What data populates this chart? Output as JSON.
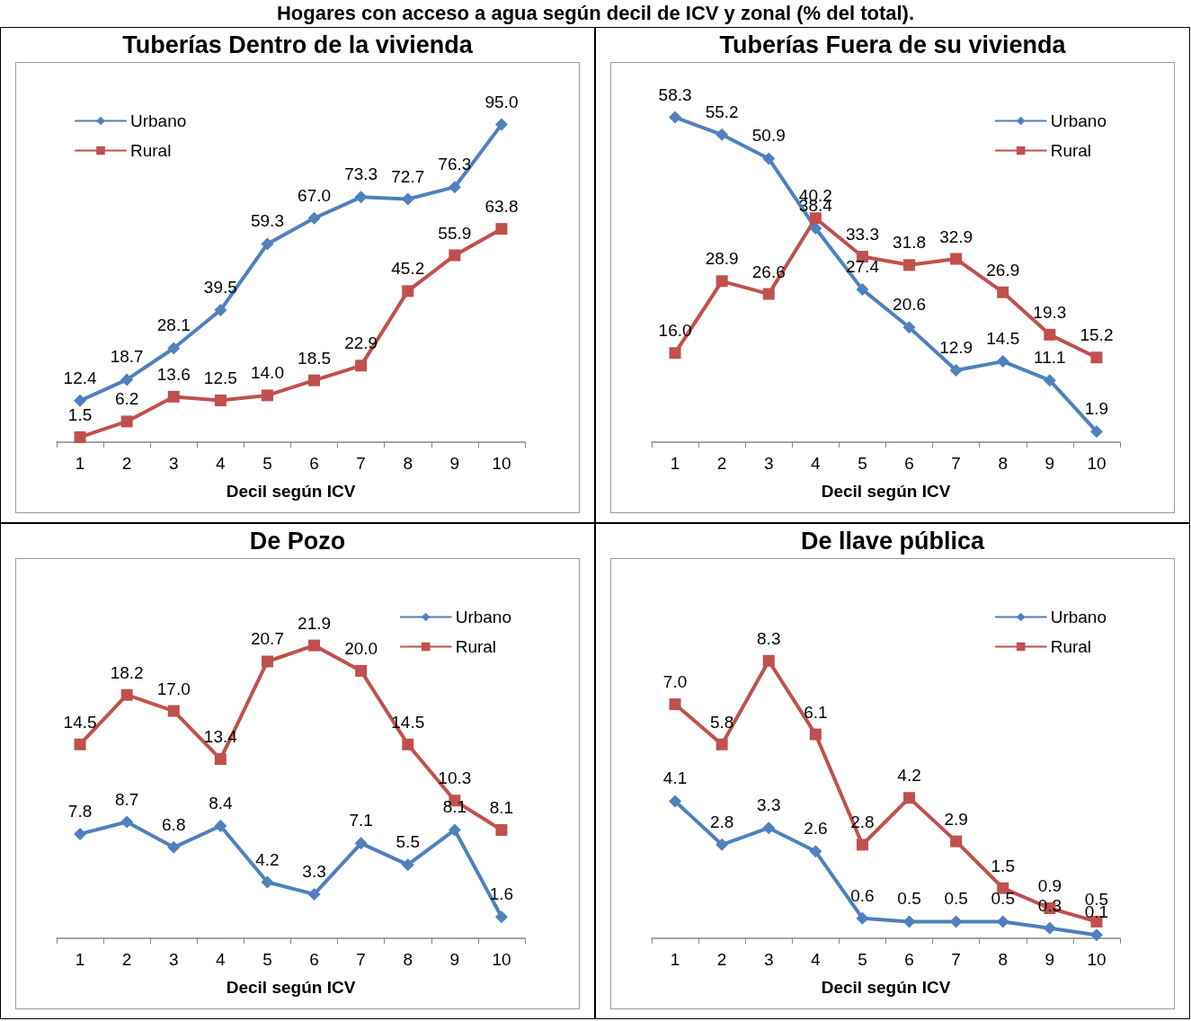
{
  "chart_data": [
    {
      "type": "line",
      "title": "Tuberías Dentro de la vivienda",
      "annotations": [
        "Hogares con acceso a agua según decil de ICV y zonal (% del total)."
      ],
      "xlabel": "Decil según ICV",
      "categories": [
        "1",
        "2",
        "3",
        "4",
        "5",
        "6",
        "7",
        "8",
        "9",
        "10"
      ],
      "grid": false,
      "legend": "top left",
      "line_style": "solid",
      "series": [
        {
          "name": "Urbano",
          "color": "#4f81bd",
          "marker": "diamond",
          "values": [
            12.4,
            18.7,
            28.1,
            39.5,
            59.3,
            67,
            73.3,
            72.7,
            76.3,
            95
          ],
          "value_labels": [
            "12.4",
            "18.7",
            "28.1",
            "39.5",
            "59.3",
            "67.0",
            "73.3",
            "72.7",
            "76.3",
            "95.0"
          ]
        },
        {
          "name": "Rural",
          "color": "#c0504d",
          "marker": "square",
          "values": [
            1.5,
            6.2,
            13.6,
            12.5,
            14,
            18.5,
            22.9,
            45.2,
            55.9,
            63.8
          ],
          "value_labels": [
            "1.5",
            "6.2",
            "13.6",
            "12.5",
            "14.0",
            "18.5",
            "22.9",
            "45.2",
            "55.9",
            "63.8"
          ]
        }
      ]
    },
    {
      "type": "line",
      "title": "Tuberías Fuera de su vivienda",
      "xlabel": "Decil según ICV",
      "categories": [
        "1",
        "2",
        "3",
        "4",
        "5",
        "6",
        "7",
        "8",
        "9",
        "10"
      ],
      "grid": false,
      "legend": "top right",
      "line_style": "solid",
      "series": [
        {
          "name": "Urbano",
          "color": "#4f81bd",
          "marker": "diamond",
          "values": [
            58.3,
            55.2,
            50.9,
            38.4,
            27.4,
            20.6,
            12.9,
            14.5,
            11.1,
            1.9
          ],
          "value_labels": [
            "58.3",
            "55.2",
            "50.9",
            "38.4",
            "27.4",
            "20.6",
            "12.9",
            "14.5",
            "11.1",
            "1.9"
          ]
        },
        {
          "name": "Rural",
          "color": "#c0504d",
          "marker": "square",
          "values": [
            16,
            28.9,
            26.6,
            40.2,
            33.3,
            31.8,
            32.9,
            26.9,
            19.3,
            15.2
          ],
          "value_labels": [
            "16.0",
            "28.9",
            "26.6",
            "40.2",
            "33.3",
            "31.8",
            "32.9",
            "26.9",
            "19.3",
            "15.2"
          ]
        }
      ]
    },
    {
      "type": "line",
      "title": "De Pozo",
      "xlabel": "Decil según ICV",
      "categories": [
        "1",
        "2",
        "3",
        "4",
        "5",
        "6",
        "7",
        "8",
        "9",
        "10"
      ],
      "grid": false,
      "legend": "top right",
      "line_style": "solid",
      "series": [
        {
          "name": "Urbano",
          "color": "#4f81bd",
          "marker": "diamond",
          "values": [
            7.8,
            8.7,
            6.8,
            8.4,
            4.2,
            3.3,
            7.1,
            5.5,
            8.1,
            1.6
          ],
          "value_labels": [
            "7.8",
            "8.7",
            "6.8",
            "8.4",
            "4.2",
            "3.3",
            "7.1",
            "5.5",
            "8.1",
            "1.6"
          ]
        },
        {
          "name": "Rural",
          "color": "#c0504d",
          "marker": "square",
          "values": [
            14.5,
            18.2,
            17,
            13.4,
            20.7,
            21.9,
            20,
            14.5,
            10.3,
            8.1
          ],
          "value_labels": [
            "14.5",
            "18.2",
            "17.0",
            "13.4",
            "20.7",
            "21.9",
            "20.0",
            "14.5",
            "10.3",
            "8.1"
          ]
        }
      ]
    },
    {
      "type": "line",
      "title": "De llave pública",
      "xlabel": "Decil según ICV",
      "categories": [
        "1",
        "2",
        "3",
        "4",
        "5",
        "6",
        "7",
        "8",
        "9",
        "10"
      ],
      "grid": false,
      "legend": "top right",
      "line_style": "solid",
      "series": [
        {
          "name": "Urbano",
          "color": "#4f81bd",
          "marker": "diamond",
          "values": [
            4.1,
            2.8,
            3.3,
            2.6,
            0.6,
            0.5,
            0.5,
            0.5,
            0.3,
            0.1
          ],
          "value_labels": [
            "4.1",
            "2.8",
            "3.3",
            "2.6",
            "0.6",
            "0.5",
            "0.5",
            "0.5",
            "0.3",
            "0.1"
          ]
        },
        {
          "name": "Rural",
          "color": "#c0504d",
          "marker": "square",
          "values": [
            7,
            5.8,
            8.3,
            6.1,
            2.8,
            4.2,
            2.9,
            1.5,
            0.9,
            0.5
          ],
          "value_labels": [
            "7.0",
            "5.8",
            "8.3",
            "6.1",
            "2.8",
            "4.2",
            "2.9",
            "1.5",
            "0.9",
            "0.5"
          ]
        }
      ]
    }
  ]
}
